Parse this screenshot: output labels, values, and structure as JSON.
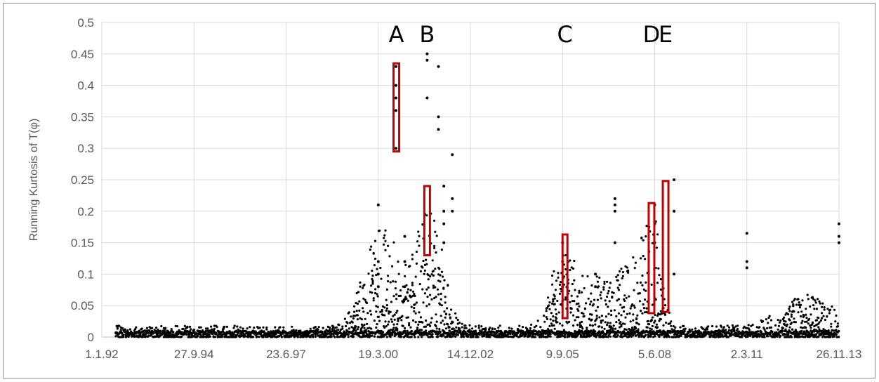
{
  "chart_data": {
    "type": "scatter",
    "title": "",
    "xlabel": "",
    "ylabel": "Running Kurtosis of T(φ)",
    "x_tick_labels": [
      "1.1.92",
      "27.9.94",
      "23.6.97",
      "19.3.00",
      "14.12.02",
      "9.9.05",
      "5.6.08",
      "2.3.11",
      "26.11.13"
    ],
    "x_range_labels": [
      "1.1.92",
      "26.11.13"
    ],
    "y_ticks": [
      0,
      0.05,
      0.1,
      0.15,
      0.2,
      0.25,
      0.3,
      0.35,
      0.4,
      0.45,
      0.5
    ],
    "y_tick_labels": [
      "0",
      "0.05",
      "0.1",
      "0.15",
      "0.2",
      "0.25",
      "0.3",
      "0.35",
      "0.4",
      "0.45",
      "0.5"
    ],
    "ylim": [
      0,
      0.5
    ],
    "grid": "vertical and horizontal",
    "legend": "none",
    "point_color": "#000000",
    "box_color": "#c00000",
    "series": [
      {
        "points": [
          [
            "19.3.00",
            0.21
          ],
          [
            "19.3.00",
            0.12
          ],
          [
            "19.3.00",
            0.1
          ],
          [
            "19.3.00",
            0.08
          ],
          [
            "27.9.00",
            0.43
          ],
          [
            "27.9.00",
            0.4
          ],
          [
            "27.9.00",
            0.38
          ],
          [
            "27.9.00",
            0.36
          ],
          [
            "27.9.00",
            0.3
          ],
          [
            "1.1.01",
            0.16
          ],
          [
            "1.1.01",
            0.12
          ],
          [
            "1.1.01",
            0.08
          ],
          [
            "1.1.01",
            0.06
          ],
          [
            "1.9.01",
            0.45
          ],
          [
            "1.9.01",
            0.44
          ],
          [
            "1.9.01",
            0.38
          ],
          [
            "1.1.02",
            0.43
          ],
          [
            "1.1.02",
            0.35
          ],
          [
            "1.1.02",
            0.33
          ],
          [
            "1.6.02",
            0.29
          ],
          [
            "1.6.02",
            0.22
          ],
          [
            "1.6.02",
            0.2
          ],
          [
            "1.3.02",
            0.24
          ],
          [
            "1.3.02",
            0.2
          ],
          [
            "1.3.02",
            0.18
          ],
          [
            "1.3.02",
            0.15
          ],
          [
            "9.9.05",
            0.15
          ],
          [
            "9.9.05",
            0.12
          ],
          [
            "9.9.05",
            0.08
          ],
          [
            "1.9.06",
            0.1
          ],
          [
            "1.9.06",
            0.08
          ],
          [
            "1.4.07",
            0.22
          ],
          [
            "1.4.07",
            0.21
          ],
          [
            "1.4.07",
            0.2
          ],
          [
            "1.4.07",
            0.15
          ],
          [
            "5.6.08",
            0.21
          ],
          [
            "5.6.08",
            0.18
          ],
          [
            "5.6.08",
            0.15
          ],
          [
            "1.1.09",
            0.25
          ],
          [
            "1.1.09",
            0.2
          ],
          [
            "1.1.09",
            0.1
          ],
          [
            "2.3.11",
            0.165
          ],
          [
            "2.3.11",
            0.12
          ],
          [
            "2.3.11",
            0.11
          ],
          [
            "26.11.13",
            0.18
          ],
          [
            "26.11.13",
            0.16
          ],
          [
            "26.11.13",
            0.15
          ]
        ]
      }
    ],
    "annotations": [
      {
        "label": "A",
        "x_from": "1.9.00",
        "x_to": "1.11.00",
        "y_from": 0.295,
        "y_to": 0.435
      },
      {
        "label": "B",
        "x_from": "1.8.01",
        "x_to": "1.10.01",
        "y_from": 0.13,
        "y_to": 0.24
      },
      {
        "label": "C",
        "x_from": "9.9.05",
        "x_to": "1.11.05",
        "y_from": 0.03,
        "y_to": 0.163
      },
      {
        "label": "D",
        "x_from": "1.4.08",
        "x_to": "1.6.08",
        "y_from": 0.038,
        "y_to": 0.213
      },
      {
        "label": "E",
        "x_from": "1.9.08",
        "x_to": "1.11.08",
        "y_from": 0.04,
        "y_to": 0.248
      }
    ]
  }
}
